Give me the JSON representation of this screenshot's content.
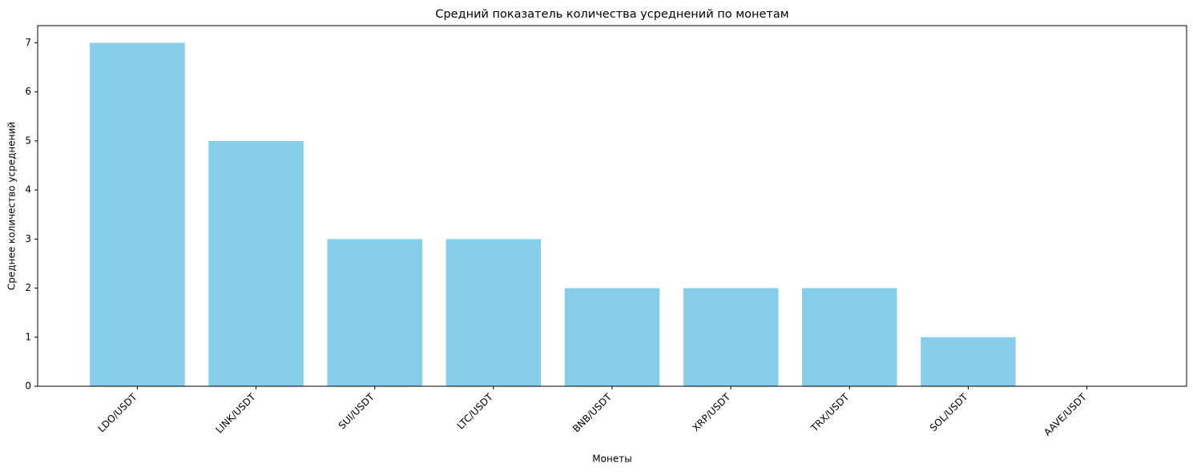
{
  "chart_data": {
    "type": "bar",
    "title": "Средний показатель количества усреднений по монетам",
    "x_label": "Монеты",
    "y_label": "Среднее количество усреднений",
    "categories": [
      "LDO/USDT",
      "LINK/USDT",
      "SUI/USDT",
      "LTC/USDT",
      "BNB/USDT",
      "XRP/USDT",
      "TRX/USDT",
      "SOL/USDT",
      "AAVE/USDT"
    ],
    "values": [
      7,
      5,
      3,
      3,
      2,
      2,
      2,
      1,
      0
    ],
    "color": "#87ceeb",
    "ylim": [
      0,
      7.35
    ],
    "yticks": [
      0,
      1,
      2,
      3,
      4,
      5,
      6,
      7
    ],
    "grid": false
  }
}
